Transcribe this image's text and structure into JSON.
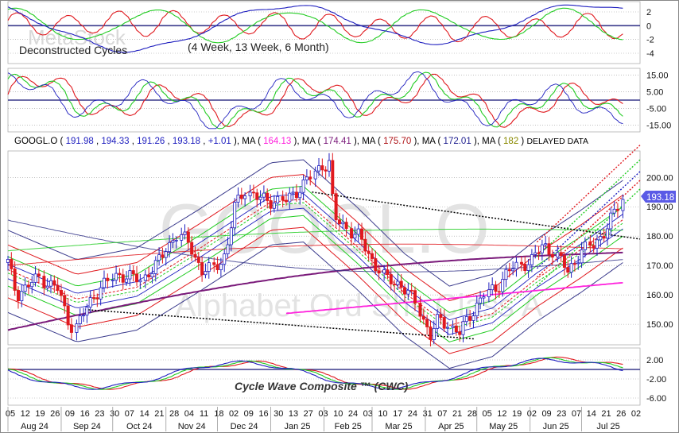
{
  "colors": {
    "blue": "#1f1fbf",
    "red": "#e0191e",
    "green": "#22cc22",
    "purple": "#7a1a7a",
    "magenta": "#ff22dd",
    "navy": "#3a3a8c",
    "last_price_bg": "#5a5ae6"
  },
  "watermark": {
    "brand": "MetaStock",
    "symbol": "GOOGL.O",
    "name": "Alphabet Ord Shs Class A"
  },
  "top_panel": {
    "title": "Deconstructed Cycles",
    "subtitle": "(4 Week, 13 Week, 6 Month)",
    "ticks": [
      "2",
      "0",
      "-2",
      "-4"
    ],
    "range": [
      -5.5,
      3.5
    ]
  },
  "mid_panel": {
    "ticks": [
      "15.00",
      "5.00",
      "-5.00",
      "-15.00"
    ],
    "range": [
      -19,
      19
    ]
  },
  "quote": {
    "symbol": "GOOGL.O",
    "open": "191.98",
    "high": "194.33",
    "low": "191.26",
    "close": "193.18",
    "change": "+1.01",
    "ma_label": "MA",
    "ma1": "164.13",
    "ma2": "174.41",
    "ma3": "175.70",
    "ma4": "172.01",
    "ma5": "182",
    "delayed": "DELAYED DATA"
  },
  "price_panel": {
    "ticks": [
      "200.00",
      "190.00",
      "180.00",
      "170.00",
      "160.00",
      "150.00"
    ],
    "last_price": "193.18",
    "range": [
      143,
      209
    ]
  },
  "bottom_panel": {
    "title": "Cycle Wave Composite ™ (CWC)",
    "ticks": [
      "2.00",
      "-2.00",
      "-6.00"
    ],
    "range": [
      -7.5,
      4.5
    ]
  },
  "x_axis": {
    "days": [
      "05",
      "12",
      "19",
      "26",
      "09",
      "16",
      "23",
      "30",
      "07",
      "14",
      "21",
      "28",
      "04",
      "11",
      "18",
      "02",
      "09",
      "16",
      "30",
      "13",
      "27",
      "03",
      "10",
      "24",
      "03",
      "10",
      "17",
      "24",
      "31",
      "07",
      "21",
      "28",
      "05",
      "12",
      "19",
      "02",
      "09",
      "23",
      "07",
      "14",
      "21",
      "26",
      "02"
    ],
    "months": [
      "Aug 24",
      "Sep 24",
      "Oct 24",
      "Nov 24",
      "Dec 24",
      "Jan 25",
      "Feb 25",
      "Mar 25",
      "Apr 25",
      "May 25",
      "Jun 25",
      "Jul 25"
    ]
  },
  "chart_data": {
    "type": "line",
    "symbol": "GOOGL.O",
    "x_range": [
      "2024-08-01",
      "2025-08-04"
    ],
    "price": {
      "ylim": [
        143,
        209
      ],
      "close_path": [
        [
          "2024-08-01",
          171
        ],
        [
          "2024-08-06",
          160
        ],
        [
          "2024-08-19",
          166
        ],
        [
          "2024-08-30",
          162
        ],
        [
          "2024-09-06",
          150
        ],
        [
          "2024-09-09",
          148
        ],
        [
          "2024-09-20",
          160
        ],
        [
          "2024-09-27",
          164
        ],
        [
          "2024-10-04",
          167
        ],
        [
          "2024-10-18",
          165
        ],
        [
          "2024-10-29",
          172
        ],
        [
          "2024-11-01",
          176
        ],
        [
          "2024-11-08",
          181
        ],
        [
          "2024-11-15",
          177
        ],
        [
          "2024-11-22",
          168
        ],
        [
          "2024-11-29",
          169
        ],
        [
          "2024-12-06",
          174
        ],
        [
          "2024-12-11",
          190
        ],
        [
          "2024-12-17",
          196
        ],
        [
          "2024-12-24",
          193
        ],
        [
          "2025-01-02",
          192
        ],
        [
          "2025-01-10",
          192
        ],
        [
          "2025-01-17",
          196
        ],
        [
          "2025-01-24",
          200
        ],
        [
          "2025-01-31",
          204
        ],
        [
          "2025-02-04",
          205
        ],
        [
          "2025-02-07",
          186
        ],
        [
          "2025-02-21",
          180
        ],
        [
          "2025-03-03",
          170
        ],
        [
          "2025-03-10",
          165
        ],
        [
          "2025-03-17",
          164
        ],
        [
          "2025-03-28",
          156
        ],
        [
          "2025-04-04",
          146
        ],
        [
          "2025-04-09",
          152
        ],
        [
          "2025-04-21",
          147
        ],
        [
          "2025-04-28",
          154
        ],
        [
          "2025-05-05",
          160
        ],
        [
          "2025-05-12",
          162
        ],
        [
          "2025-05-19",
          168
        ],
        [
          "2025-05-26",
          170
        ],
        [
          "2025-06-02",
          172
        ],
        [
          "2025-06-09",
          177
        ],
        [
          "2025-06-16",
          174
        ],
        [
          "2025-06-23",
          168
        ],
        [
          "2025-07-01",
          175
        ],
        [
          "2025-07-08",
          177
        ],
        [
          "2025-07-15",
          182
        ],
        [
          "2025-07-22",
          190
        ],
        [
          "2025-07-25",
          193.18
        ]
      ],
      "moving_averages": [
        {
          "name": "MA",
          "value": 164.13,
          "color": "magenta",
          "start": 145,
          "end": 164.13
        },
        {
          "name": "MA",
          "value": 174.41,
          "color": "purple",
          "start": 148,
          "end": 174.41
        },
        {
          "name": "MA",
          "value": 175.7,
          "color": "red",
          "start": 170,
          "end": 175.7
        },
        {
          "name": "MA",
          "value": 172.01,
          "color": "navy",
          "start": 185.5,
          "end": 172.01
        },
        {
          "name": "MA",
          "value": 182,
          "color": "green",
          "start": 175,
          "end": 182
        }
      ],
      "cycle_envelope_centre": [
        [
          "2024-08-01",
          168
        ],
        [
          "2024-09-10",
          158
        ],
        [
          "2024-10-15",
          162
        ],
        [
          "2024-11-20",
          175
        ],
        [
          "2025-01-01",
          191
        ],
        [
          "2025-01-20",
          192
        ],
        [
          "2025-02-20",
          176
        ],
        [
          "2025-03-20",
          160
        ],
        [
          "2025-04-15",
          149
        ],
        [
          "2025-05-10",
          153
        ],
        [
          "2025-06-05",
          165
        ],
        [
          "2025-07-01",
          175
        ],
        [
          "2025-07-25",
          185
        ]
      ],
      "channels": {
        "upper_trend": [
          [
            "2025-01-25",
            195
          ],
          [
            "2025-08-04",
            179
          ]
        ],
        "lower_trend": [
          [
            "2024-09-15",
            155
          ],
          [
            "2025-04-30",
            145
          ]
        ],
        "up_channel": [
          [
            "2025-06-05",
            166
          ],
          [
            "2025-08-04",
            187
          ]
        ]
      }
    },
    "deconstructed_cycles": {
      "ylim": [
        -5.5,
        3.5
      ],
      "series": [
        {
          "name": "4 Week",
          "color": "red"
        },
        {
          "name": "13 Week",
          "color": "green"
        },
        {
          "name": "6 Month",
          "color": "blue"
        }
      ]
    },
    "oscillator": {
      "ylim": [
        -19,
        19
      ],
      "zero_line": 0
    },
    "cwc": {
      "ylim": [
        -7.5,
        4.5
      ],
      "zero_line": 0,
      "last": 2.8
    }
  }
}
